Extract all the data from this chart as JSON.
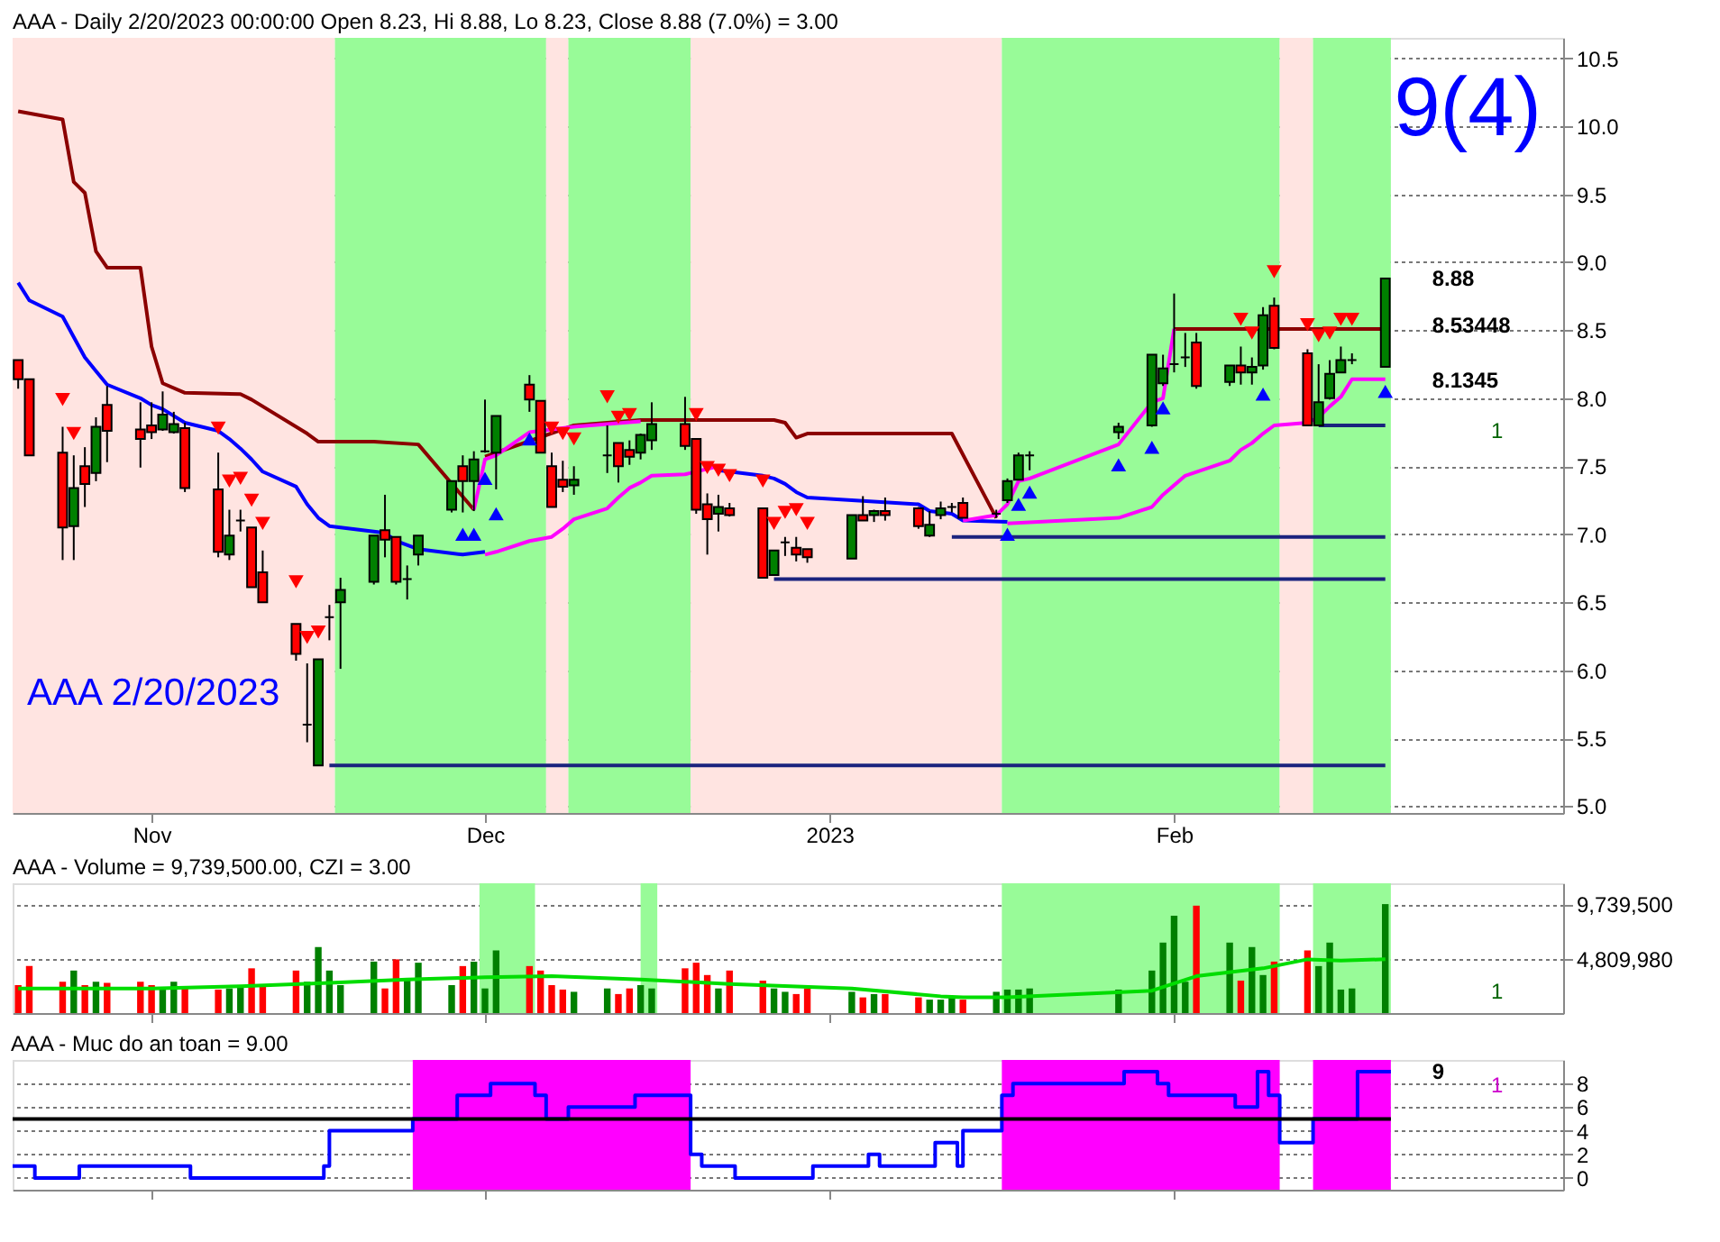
{
  "chart_data": [
    {
      "type": "candlestick",
      "title": "AAA - Daily 2/20/2023 00:00:00 Open 8.23, Hi 8.88, Lo 8.23, Close 8.88 (7.0%)  = 3.00",
      "x": [
        "2022-10-20",
        "2022-10-21",
        "2022-10-24",
        "2022-10-25",
        "2022-10-26",
        "2022-10-27",
        "2022-10-28",
        "2022-10-31",
        "2022-11-01",
        "2022-11-02",
        "2022-11-03",
        "2022-11-04",
        "2022-11-07",
        "2022-11-08",
        "2022-11-09",
        "2022-11-10",
        "2022-11-11",
        "2022-11-14",
        "2022-11-15",
        "2022-11-16",
        "2022-11-17",
        "2022-11-18",
        "2022-11-21",
        "2022-11-22",
        "2022-11-23",
        "2022-11-24",
        "2022-11-25",
        "2022-11-28",
        "2022-11-29",
        "2022-11-30",
        "2022-12-01",
        "2022-12-02",
        "2022-12-05",
        "2022-12-06",
        "2022-12-07",
        "2022-12-08",
        "2022-12-09",
        "2022-12-12",
        "2022-12-13",
        "2022-12-14",
        "2022-12-15",
        "2022-12-16",
        "2022-12-19",
        "2022-12-20",
        "2022-12-21",
        "2022-12-22",
        "2022-12-23",
        "2022-12-26",
        "2022-12-27",
        "2022-12-28",
        "2022-12-29",
        "2022-12-30",
        "2023-01-03",
        "2023-01-04",
        "2023-01-05",
        "2023-01-06",
        "2023-01-09",
        "2023-01-10",
        "2023-01-11",
        "2023-01-12",
        "2023-01-13",
        "2023-01-16",
        "2023-01-17",
        "2023-01-18",
        "2023-01-19",
        "2023-01-27",
        "2023-01-30",
        "2023-01-31",
        "2023-02-01",
        "2023-02-02",
        "2023-02-03",
        "2023-02-06",
        "2023-02-07",
        "2023-02-08",
        "2023-02-09",
        "2023-02-10",
        "2023-02-13",
        "2023-02-14",
        "2023-02-15",
        "2023-02-16",
        "2023-02-17",
        "2023-02-20"
      ],
      "ohlc": [
        [
          8.28,
          8.28,
          8.07,
          8.14
        ],
        [
          8.14,
          8.14,
          7.58,
          7.58
        ],
        [
          7.6,
          7.79,
          6.81,
          7.05
        ],
        [
          7.06,
          7.58,
          6.81,
          7.34
        ],
        [
          7.5,
          7.64,
          7.2,
          7.37
        ],
        [
          7.45,
          7.86,
          7.39,
          7.79
        ],
        [
          7.95,
          8.09,
          7.53,
          7.76
        ],
        [
          7.77,
          7.97,
          7.49,
          7.7
        ],
        [
          7.8,
          7.97,
          7.7,
          7.75
        ],
        [
          7.77,
          8.05,
          7.76,
          7.88
        ],
        [
          7.75,
          7.9,
          7.74,
          7.81
        ],
        [
          7.78,
          7.82,
          7.31,
          7.34
        ],
        [
          7.33,
          7.6,
          6.83,
          6.87
        ],
        [
          6.85,
          7.18,
          6.81,
          6.99
        ],
        [
          7.1,
          7.18,
          7.02,
          7.1
        ],
        [
          7.05,
          7.05,
          6.61,
          6.61
        ],
        [
          6.72,
          6.88,
          6.5,
          6.5
        ],
        [
          6.34,
          6.34,
          6.07,
          6.12
        ],
        [
          5.6,
          6.05,
          5.47,
          5.6
        ],
        [
          5.3,
          6.08,
          5.3,
          6.08
        ],
        [
          6.39,
          6.48,
          6.22,
          6.39
        ],
        [
          6.5,
          6.68,
          6.01,
          6.59
        ],
        [
          6.65,
          6.99,
          6.63,
          6.99
        ],
        [
          7.03,
          7.29,
          6.83,
          6.96
        ],
        [
          6.98,
          6.98,
          6.63,
          6.65
        ],
        [
          6.67,
          6.77,
          6.52,
          6.67
        ],
        [
          6.85,
          6.99,
          6.77,
          6.99
        ],
        [
          7.18,
          7.39,
          7.16,
          7.39
        ],
        [
          7.5,
          7.58,
          7.16,
          7.39
        ],
        [
          7.39,
          7.61,
          7.17,
          7.55
        ],
        [
          7.61,
          7.99,
          7.6,
          7.61
        ],
        [
          7.6,
          7.87,
          7.33,
          7.87
        ],
        [
          8.1,
          8.17,
          7.9,
          7.99
        ],
        [
          7.98,
          7.98,
          7.6,
          7.6
        ],
        [
          7.5,
          7.6,
          7.2,
          7.2
        ],
        [
          7.4,
          7.54,
          7.31,
          7.35
        ],
        [
          7.36,
          7.5,
          7.29,
          7.4
        ],
        [
          7.58,
          7.8,
          7.45,
          7.58
        ],
        [
          7.67,
          7.67,
          7.38,
          7.5
        ],
        [
          7.62,
          7.69,
          7.51,
          7.57
        ],
        [
          7.6,
          7.74,
          7.55,
          7.73
        ],
        [
          7.69,
          7.97,
          7.62,
          7.81
        ],
        [
          7.81,
          8.01,
          7.62,
          7.65
        ],
        [
          7.7,
          7.7,
          7.15,
          7.18
        ],
        [
          7.22,
          7.3,
          6.85,
          7.11
        ],
        [
          7.15,
          7.29,
          7.02,
          7.2
        ],
        [
          7.19,
          7.23,
          7.13,
          7.14
        ],
        [
          7.19,
          7.19,
          6.68,
          6.68
        ],
        [
          6.7,
          6.88,
          6.7,
          6.88
        ],
        [
          6.94,
          6.98,
          6.84,
          6.94
        ],
        [
          6.9,
          6.98,
          6.8,
          6.85
        ],
        [
          6.89,
          6.89,
          6.79,
          6.83
        ],
        [
          6.82,
          7.14,
          6.82,
          7.14
        ],
        [
          7.14,
          7.28,
          7.1,
          7.1
        ],
        [
          7.14,
          7.18,
          7.09,
          7.17
        ],
        [
          7.17,
          7.27,
          7.1,
          7.14
        ],
        [
          7.19,
          7.2,
          7.04,
          7.06
        ],
        [
          6.99,
          7.17,
          6.98,
          7.07
        ],
        [
          7.14,
          7.24,
          7.11,
          7.19
        ],
        [
          7.2,
          7.23,
          7.16,
          7.2
        ],
        [
          7.23,
          7.27,
          7.12,
          7.12
        ],
        [
          7.15,
          7.18,
          7.12,
          7.15
        ],
        [
          7.25,
          7.41,
          7.23,
          7.39
        ],
        [
          7.4,
          7.6,
          7.4,
          7.58
        ],
        [
          7.58,
          7.61,
          7.47,
          7.58
        ],
        [
          7.75,
          7.82,
          7.7,
          7.79
        ],
        [
          7.8,
          8.32,
          7.79,
          8.32
        ],
        [
          8.11,
          8.32,
          8.09,
          8.22
        ],
        [
          8.25,
          8.77,
          8.19,
          8.25
        ],
        [
          8.3,
          8.48,
          8.23,
          8.3
        ],
        [
          8.41,
          8.48,
          8.07,
          8.09
        ],
        [
          8.12,
          8.24,
          8.09,
          8.24
        ],
        [
          8.24,
          8.38,
          8.1,
          8.19
        ],
        [
          8.19,
          8.3,
          8.1,
          8.23
        ],
        [
          8.24,
          8.67,
          8.21,
          8.61
        ],
        [
          8.68,
          8.74,
          8.36,
          8.37
        ],
        [
          8.33,
          8.36,
          7.8,
          7.8
        ],
        [
          7.8,
          8.25,
          7.8,
          7.97
        ],
        [
          8.0,
          8.28,
          7.99,
          8.18
        ],
        [
          8.19,
          8.38,
          8.19,
          8.28
        ],
        [
          8.28,
          8.33,
          8.25,
          8.28
        ],
        [
          8.23,
          8.88,
          8.23,
          8.88
        ]
      ],
      "colors": [
        "#ff0000",
        "#ff0000",
        "#ff0000",
        "#008000",
        "#ff0000",
        "#008000",
        "#ff0000",
        "#ff0000",
        "#ff0000",
        "#008000",
        "#008000",
        "#ff0000",
        "#ff0000",
        "#008000",
        "#000000",
        "#ff0000",
        "#ff0000",
        "#ff0000",
        "#000000",
        "#008000",
        "#000000",
        "#008000",
        "#008000",
        "#ff0000",
        "#ff0000",
        "#000000",
        "#008000",
        "#008000",
        "#ff0000",
        "#008000",
        "#000000",
        "#008000",
        "#ff0000",
        "#ff0000",
        "#ff0000",
        "#ff0000",
        "#008000",
        "#000000",
        "#ff0000",
        "#ff0000",
        "#008000",
        "#008000",
        "#ff0000",
        "#ff0000",
        "#ff0000",
        "#008000",
        "#ff0000",
        "#ff0000",
        "#008000",
        "#000000",
        "#ff0000",
        "#ff0000",
        "#008000",
        "#ff0000",
        "#008000",
        "#ff0000",
        "#ff0000",
        "#008000",
        "#008000",
        "#000000",
        "#ff0000",
        "#000000",
        "#008000",
        "#008000",
        "#000000",
        "#008000",
        "#008000",
        "#008000",
        "#000000",
        "#000000",
        "#ff0000",
        "#008000",
        "#ff0000",
        "#008000",
        "#008000",
        "#ff0000",
        "#ff0000",
        "#008000",
        "#008000",
        "#008000",
        "#000000",
        "#008000"
      ],
      "series": [
        {
          "type": "line",
          "color": "#8b0000",
          "x": [
            "2022-10-20",
            "2022-10-24",
            "2022-10-25",
            "2022-10-26",
            "2022-10-27",
            "2022-10-28",
            "2022-10-31",
            "2022-11-01",
            "2022-11-02",
            "2022-11-04",
            "2022-11-09",
            "2022-11-10",
            "2022-11-15",
            "2022-11-16",
            "2022-11-21",
            "2022-11-25",
            "2022-11-30",
            "2022-11-30T18:00",
            "2022-12-01",
            "2022-12-09",
            "2022-12-15",
            "2022-12-27",
            "2022-12-28",
            "2022-12-29",
            "2022-12-30",
            "2023-01-12",
            "2023-01-16",
            "2023-01-24",
            "2023-02-01",
            "2023-02-20"
          ],
          "values": [
            10.11,
            10.05,
            9.59,
            9.51,
            9.08,
            8.96,
            8.96,
            8.38,
            8.11,
            8.04,
            8.03,
            7.99,
            7.74,
            7.68,
            7.68,
            7.66,
            7.18,
            null,
            7.57,
            7.8,
            7.84,
            7.84,
            7.82,
            7.71,
            7.74,
            7.74,
            7.12,
            null,
            8.51,
            8.51
          ]
        },
        {
          "type": "line",
          "color": "#0000ff",
          "x": [
            "2022-10-20",
            "2022-10-21",
            "2022-10-24",
            "2022-10-25",
            "2022-10-26",
            "2022-10-27",
            "2022-10-28",
            "2022-10-31",
            "2022-11-01",
            "2022-11-02",
            "2022-11-04",
            "2022-11-07",
            "2022-11-08",
            "2022-11-09",
            "2022-11-10",
            "2022-11-11",
            "2022-11-14",
            "2022-11-15",
            "2022-11-16",
            "2022-11-17",
            "2022-11-22",
            "2022-11-23",
            "2022-11-25",
            "2022-11-29",
            "2022-12-01",
            "2022-12-12",
            "2022-12-22",
            "2022-12-26",
            "2022-12-27",
            "2022-12-28",
            "2022-12-29",
            "2022-12-30",
            "2023-01-03",
            "2023-01-09",
            "2023-01-10",
            "2023-01-12",
            "2023-01-13",
            "2023-01-17"
          ],
          "values": [
            8.85,
            8.72,
            8.6,
            8.45,
            8.3,
            8.2,
            8.1,
            8.0,
            7.95,
            7.92,
            7.82,
            7.76,
            7.7,
            7.63,
            7.55,
            7.46,
            7.35,
            7.22,
            7.12,
            7.06,
            7.01,
            6.95,
            6.89,
            6.85,
            6.87,
            null,
            7.47,
            7.43,
            7.41,
            7.37,
            7.31,
            7.27,
            7.25,
            7.22,
            7.17,
            7.15,
            7.1,
            7.09
          ]
        },
        {
          "type": "line",
          "color": "#ff00ff",
          "x": [
            "2022-11-30",
            "2022-12-01",
            "2022-12-02",
            "2022-12-05",
            "2022-12-06",
            "2022-12-09",
            "2022-12-15",
            "2022-12-28",
            "2023-01-13",
            "2023-01-16",
            "2023-01-17",
            "2023-01-18",
            "2023-01-19",
            "2023-01-27",
            "2023-01-30",
            "2023-01-31",
            "2023-02-01"
          ],
          "values": [
            7.18,
            7.55,
            7.58,
            7.75,
            7.76,
            7.79,
            7.83,
            null,
            7.1,
            7.14,
            7.22,
            7.39,
            7.41,
            7.66,
            7.97,
            8.0,
            8.51
          ]
        },
        {
          "type": "line",
          "color": "#ff00ff",
          "x": [
            "2022-12-01",
            "2022-12-02",
            "2022-12-05",
            "2022-12-07",
            "2022-12-08",
            "2022-12-09",
            "2022-12-12",
            "2022-12-13",
            "2022-12-14",
            "2022-12-15",
            "2022-12-16",
            "2022-12-19",
            "2022-12-22",
            "2023-01-05",
            "2023-01-17",
            "2023-01-27",
            "2023-01-30",
            "2023-01-31",
            "2023-02-01",
            "2023-02-02",
            "2023-02-06",
            "2023-02-07",
            "2023-02-08",
            "2023-02-09",
            "2023-02-10",
            "2023-02-13",
            "2023-02-14",
            "2023-02-15",
            "2023-02-16",
            "2023-02-17",
            "2023-02-20"
          ],
          "values": [
            6.85,
            6.87,
            6.95,
            6.98,
            7.04,
            7.11,
            7.19,
            7.27,
            7.34,
            7.38,
            7.43,
            7.44,
            7.5,
            null,
            7.08,
            7.12,
            7.2,
            7.29,
            7.36,
            7.43,
            7.54,
            7.62,
            7.67,
            7.74,
            7.8,
            7.82,
            7.86,
            7.94,
            8.01,
            8.14,
            8.14
          ]
        },
        {
          "type": "line",
          "color": "#1a237e",
          "x": [
            "2022-11-17",
            "2023-02-20"
          ],
          "values": [
            5.3,
            5.3
          ]
        },
        {
          "type": "line",
          "color": "#1a237e",
          "x": [
            "2022-12-27",
            "2023-02-20"
          ],
          "values": [
            6.67,
            6.67
          ]
        },
        {
          "type": "line",
          "color": "#1a237e",
          "x": [
            "2023-01-12",
            "2023-02-20"
          ],
          "values": [
            6.98,
            6.98
          ]
        },
        {
          "type": "line",
          "color": "#1a237e",
          "x": [
            "2023-02-14",
            "2023-02-20"
          ],
          "values": [
            7.8,
            7.8
          ]
        },
        {
          "type": "scatter",
          "color": "#ff0000",
          "marker": "triangle-down",
          "x": [
            "2022-10-24",
            "2022-10-25",
            "2022-11-07",
            "2022-11-08",
            "2022-11-09",
            "2022-11-10",
            "2022-11-11",
            "2022-11-14",
            "2022-11-15",
            "2022-11-16",
            "2022-12-07",
            "2022-12-08",
            "2022-12-09",
            "2022-12-12",
            "2022-12-13",
            "2022-12-14",
            "2022-12-20",
            "2022-12-21",
            "2022-12-22",
            "2022-12-23",
            "2022-12-26",
            "2022-12-27",
            "2022-12-28",
            "2022-12-29",
            "2022-12-30",
            "2023-02-07",
            "2023-02-08",
            "2023-02-10",
            "2023-02-13",
            "2023-02-14",
            "2023-02-15",
            "2023-02-16",
            "2023-02-17"
          ],
          "values": [
            7.99,
            7.74,
            7.78,
            7.39,
            7.41,
            7.25,
            7.08,
            6.65,
            6.24,
            6.28,
            7.78,
            7.74,
            7.7,
            8.01,
            7.86,
            7.88,
            7.88,
            7.49,
            7.47,
            7.43,
            7.39,
            7.08,
            7.16,
            7.18,
            7.08,
            8.58,
            8.48,
            8.93,
            8.54,
            8.46,
            8.48,
            8.58,
            8.58
          ]
        },
        {
          "type": "scatter",
          "color": "#0000ff",
          "marker": "triangle",
          "x": [
            "2022-11-29",
            "2022-11-30",
            "2022-12-01",
            "2022-12-02",
            "2022-12-05",
            "2023-01-17",
            "2023-01-18",
            "2023-01-19",
            "2023-01-27",
            "2023-01-30",
            "2023-01-31",
            "2023-02-09",
            "2023-02-20"
          ],
          "values": [
            7.0,
            7.0,
            7.41,
            7.15,
            7.7,
            7.0,
            7.22,
            7.31,
            7.51,
            7.64,
            7.93,
            8.03,
            8.05
          ]
        }
      ],
      "bands": [
        {
          "axis": "x",
          "from": "2022-10-19T12:00",
          "to": "2022-11-17T12:00",
          "color": "#ffe4e1"
        },
        {
          "axis": "x",
          "from": "2022-11-17T12:00",
          "to": "2022-12-06T12:00",
          "color": "#98fb98"
        },
        {
          "axis": "x",
          "from": "2022-12-06T12:00",
          "to": "2022-12-08T12:00",
          "color": "#ffe4e1"
        },
        {
          "axis": "x",
          "from": "2022-12-08T12:00",
          "to": "2022-12-19T12:00",
          "color": "#98fb98"
        },
        {
          "axis": "x",
          "from": "2022-12-19T12:00",
          "to": "2023-01-16T12:00",
          "color": "#ffe4e1"
        },
        {
          "axis": "x",
          "from": "2023-01-16T12:00",
          "to": "2023-02-10T12:00",
          "color": "#98fb98"
        },
        {
          "axis": "x",
          "from": "2023-02-10T12:00",
          "to": "2023-02-13T12:00",
          "color": "#ffe4e1"
        },
        {
          "axis": "x",
          "from": "2023-02-13T12:00",
          "to": "2023-02-20T12:00",
          "color": "#98fb98"
        }
      ],
      "xlim": [
        "2022-10-19T12:00",
        "2023-03-08"
      ],
      "xticks": [
        {
          "value": "2022-11-01",
          "label": "Nov"
        },
        {
          "value": "2022-12-01",
          "label": "Dec"
        },
        {
          "value": "2023-01-01",
          "label": "2023"
        },
        {
          "value": "2023-02-01",
          "label": "Feb"
        }
      ],
      "ylim": [
        4.95,
        10.65
      ],
      "yticks": [
        {
          "value": 5,
          "label": "5.0"
        },
        5.5,
        {
          "value": 6,
          "label": "6.0"
        },
        6.5,
        {
          "value": 7,
          "label": "7.0"
        },
        7.5,
        {
          "value": 8,
          "label": "8.0"
        },
        8.5,
        {
          "value": 9,
          "label": "9.0"
        },
        9.5,
        {
          "value": 10,
          "label": "10.0"
        },
        10.5
      ],
      "grid": "y",
      "annotations": [
        "9(4)",
        "AAA 2/20/2023",
        "1",
        {
          "text": "8.88",
          "x": "2023-02-20",
          "y": 8.88
        },
        {
          "text": "8.53448",
          "x": "2023-02-20",
          "y": 8.53448
        },
        {
          "text": "8.1345",
          "x": "2023-02-20",
          "y": 8.1345
        }
      ]
    },
    {
      "type": "bar",
      "title": "AAA - Volume = 9,739,500.00, CZI = 3.00",
      "x": [
        "2022-10-20",
        "2022-10-21",
        "2022-10-24",
        "2022-10-25",
        "2022-10-26",
        "2022-10-27",
        "2022-10-28",
        "2022-10-31",
        "2022-11-01",
        "2022-11-02",
        "2022-11-03",
        "2022-11-04",
        "2022-11-07",
        "2022-11-08",
        "2022-11-09",
        "2022-11-10",
        "2022-11-11",
        "2022-11-14",
        "2022-11-15",
        "2022-11-16",
        "2022-11-17",
        "2022-11-18",
        "2022-11-21",
        "2022-11-22",
        "2022-11-23",
        "2022-11-24",
        "2022-11-25",
        "2022-11-28",
        "2022-11-29",
        "2022-11-30",
        "2022-12-01",
        "2022-12-02",
        "2022-12-05",
        "2022-12-06",
        "2022-12-07",
        "2022-12-08",
        "2022-12-09",
        "2022-12-12",
        "2022-12-13",
        "2022-12-14",
        "2022-12-15",
        "2022-12-16",
        "2022-12-19",
        "2022-12-20",
        "2022-12-21",
        "2022-12-22",
        "2022-12-23",
        "2022-12-26",
        "2022-12-27",
        "2022-12-28",
        "2022-12-29",
        "2022-12-30",
        "2023-01-03",
        "2023-01-04",
        "2023-01-05",
        "2023-01-06",
        "2023-01-09",
        "2023-01-10",
        "2023-01-11",
        "2023-01-12",
        "2023-01-13",
        "2023-01-16",
        "2023-01-17",
        "2023-01-18",
        "2023-01-19",
        "2023-01-27",
        "2023-01-30",
        "2023-01-31",
        "2023-02-01",
        "2023-02-02",
        "2023-02-03",
        "2023-02-06",
        "2023-02-07",
        "2023-02-08",
        "2023-02-09",
        "2023-02-10",
        "2023-02-13",
        "2023-02-14",
        "2023-02-15",
        "2023-02-16",
        "2023-02-17",
        "2023-02-20"
      ],
      "values": [
        2500000,
        4200000,
        2800000,
        3800000,
        2500000,
        2800000,
        2700000,
        2800000,
        2500000,
        2200000,
        2800000,
        2200000,
        2100000,
        2200000,
        2500000,
        4000000,
        2500000,
        3800000,
        2800000,
        5900000,
        3800000,
        2500000,
        4600000,
        2200000,
        4800000,
        3100000,
        4500000,
        2500000,
        4200000,
        4600000,
        2200000,
        5600000,
        4200000,
        3800000,
        2500000,
        2100000,
        1900000,
        2200000,
        1700000,
        2200000,
        2500000,
        2200000,
        4000000,
        4500000,
        3400000,
        2200000,
        3800000,
        2900000,
        2200000,
        1900000,
        1700000,
        2200000,
        1900000,
        1400000,
        1700000,
        1700000,
        1400000,
        1200000,
        1200000,
        1400000,
        1200000,
        1900000,
        2100000,
        2100000,
        2200000,
        2100000,
        3800000,
        6300000,
        8700000,
        2800000,
        9600000,
        6300000,
        2900000,
        5900000,
        3400000,
        4600000,
        5600000,
        4200000,
        6300000,
        2100000,
        2200000,
        9739500
      ],
      "colors": [
        "#ff0000",
        "#ff0000",
        "#ff0000",
        "#008000",
        "#ff0000",
        "#008000",
        "#ff0000",
        "#ff0000",
        "#ff0000",
        "#008000",
        "#008000",
        "#ff0000",
        "#ff0000",
        "#008000",
        "#008000",
        "#ff0000",
        "#ff0000",
        "#ff0000",
        "#008000",
        "#008000",
        "#008000",
        "#008000",
        "#008000",
        "#ff0000",
        "#ff0000",
        "#008000",
        "#008000",
        "#008000",
        "#ff0000",
        "#008000",
        "#008000",
        "#008000",
        "#ff0000",
        "#ff0000",
        "#ff0000",
        "#ff0000",
        "#008000",
        "#008000",
        "#ff0000",
        "#ff0000",
        "#008000",
        "#008000",
        "#ff0000",
        "#ff0000",
        "#ff0000",
        "#008000",
        "#ff0000",
        "#ff0000",
        "#008000",
        "#008000",
        "#ff0000",
        "#ff0000",
        "#008000",
        "#ff0000",
        "#008000",
        "#ff0000",
        "#ff0000",
        "#008000",
        "#008000",
        "#008000",
        "#ff0000",
        "#008000",
        "#008000",
        "#008000",
        "#008000",
        "#008000",
        "#008000",
        "#008000",
        "#008000",
        "#008000",
        "#ff0000",
        "#008000",
        "#ff0000",
        "#008000",
        "#008000",
        "#ff0000",
        "#ff0000",
        "#008000",
        "#008000",
        "#008000",
        "#008000",
        "#008000"
      ],
      "series": [
        {
          "type": "line",
          "color": "#00dd00",
          "x": [
            "2022-10-20",
            "2022-11-01",
            "2022-11-09",
            "2022-11-17",
            "2022-11-24",
            "2022-12-01",
            "2022-12-07",
            "2022-12-15",
            "2022-12-23",
            "2023-01-03",
            "2023-01-11",
            "2023-01-13",
            "2023-01-17",
            "2023-01-30",
            "2023-02-03",
            "2023-02-09",
            "2023-02-13",
            "2023-02-16",
            "2023-02-20"
          ],
          "values": [
            2200000,
            2200000,
            2400000,
            2700000,
            3000000,
            3200000,
            3300000,
            3000000,
            2600000,
            2200000,
            1500000,
            1400000,
            1400000,
            2000000,
            3300000,
            4000000,
            4800000,
            4700000,
            4809980
          ]
        }
      ],
      "bands": [
        {
          "axis": "x",
          "from": "2022-11-30T12:00",
          "to": "2022-12-05T12:00",
          "color": "#98fb98"
        },
        {
          "axis": "x",
          "from": "2022-12-15",
          "to": "2022-12-16T12:00",
          "color": "#98fb98"
        },
        {
          "axis": "x",
          "from": "2023-01-16T12:00",
          "to": "2023-02-10T12:00",
          "color": "#98fb98"
        },
        {
          "axis": "x",
          "from": "2023-02-13T12:00",
          "to": "2023-02-20T12:00",
          "color": "#98fb98"
        }
      ],
      "xlim": [
        "2022-10-19T12:00",
        "2023-03-08"
      ],
      "xticks": [
        {
          "value": "2022-11-01",
          "label": null
        },
        {
          "value": "2022-12-01",
          "label": null
        },
        {
          "value": "2023-01-01",
          "label": null
        },
        {
          "value": "2023-02-01",
          "label": null
        }
      ],
      "ylim": [
        0,
        11600000
      ],
      "yticks": [
        {
          "value": 4809980,
          "label": "4,809,980"
        },
        {
          "value": 9739500,
          "label": "9,739,500"
        }
      ],
      "grid": "y",
      "tick_labels": "y",
      "annotations": [
        "1"
      ]
    },
    {
      "type": "step",
      "title": "AAA - Muc do an toan = 9.00",
      "series": [
        {
          "color": "#0000ff",
          "x": [
            "2022-10-19T12:00",
            "2022-10-21T12:00",
            "2022-10-25T12:00",
            "2022-11-04T12:00",
            "2022-11-16T12:00",
            "2022-11-17",
            "2022-11-24T12:00",
            "2022-11-28T12:00",
            "2022-12-01T12:00",
            "2022-12-05T12:00",
            "2022-12-06T12:00",
            "2022-12-08T12:00",
            "2022-12-14T12:00",
            "2022-12-19T12:00",
            "2022-12-20T12:00",
            "2022-12-23T12:00",
            "2022-12-30T12:00",
            "2023-01-04T12:00",
            "2023-01-05T12:00",
            "2023-01-10T12:00",
            "2023-01-12T12:00",
            "2023-01-13",
            "2023-01-16T12:00",
            "2023-01-17T12:00",
            "2023-01-27T12:00",
            "2023-01-30T12:00",
            "2023-01-31T12:00",
            "2023-02-06T12:00",
            "2023-02-08T12:00",
            "2023-02-09T12:00",
            "2023-02-10T12:00",
            "2023-02-13T12:00",
            "2023-02-17T12:00",
            "2023-02-20T12:00"
          ],
          "values": [
            1,
            0,
            1,
            0,
            1,
            4,
            5,
            7,
            8,
            7,
            5,
            6,
            7,
            2,
            1,
            0,
            1,
            2,
            1,
            3,
            1,
            4,
            7,
            8,
            9,
            8,
            7,
            6,
            9,
            7,
            3,
            5,
            9,
            9
          ]
        },
        {
          "type": "line",
          "color": "#000000",
          "x": [
            "2022-10-19T12:00",
            "2023-02-20T12:00"
          ],
          "values": [
            5,
            5
          ]
        }
      ],
      "bands": [
        {
          "axis": "x",
          "from": "2022-11-24T12:00",
          "to": "2022-12-19T12:00",
          "color": "#ff00ff"
        },
        {
          "axis": "x",
          "from": "2023-01-16T12:00",
          "to": "2023-02-10T12:00",
          "color": "#ff00ff"
        },
        {
          "axis": "x",
          "from": "2023-02-13T12:00",
          "to": "2023-02-20T12:00",
          "color": "#ff00ff"
        }
      ],
      "xlim": [
        "2022-10-19T12:00",
        "2023-03-08"
      ],
      "xticks": [
        {
          "value": "2022-11-01",
          "label": null
        },
        {
          "value": "2022-12-01",
          "label": null
        },
        {
          "value": "2023-01-01",
          "label": null
        },
        {
          "value": "2023-02-01",
          "label": null
        }
      ],
      "ylim": [
        -1,
        10
      ],
      "yticks": [
        0,
        2,
        4,
        6,
        8
      ],
      "grid": "y",
      "tick_labels": "y",
      "annotations": [
        "1",
        {
          "text": "9",
          "x": "2023-02-20",
          "y": 9
        }
      ]
    }
  ]
}
